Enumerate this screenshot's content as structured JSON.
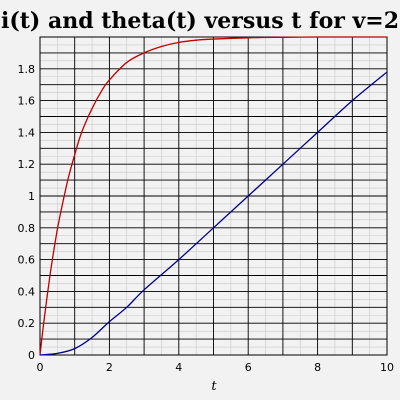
{
  "chart_data": {
    "type": "line",
    "title": "i(t) and theta(t) versus t for v=2",
    "xlabel": "t",
    "ylabel": "",
    "xlim": [
      0,
      10
    ],
    "ylim": [
      0,
      2.0
    ],
    "xticks": [
      0,
      2,
      4,
      6,
      8,
      10
    ],
    "yticks": [
      0,
      0.2,
      0.4,
      0.6,
      0.8,
      1,
      1.2,
      1.4,
      1.6,
      1.8
    ],
    "grid": true,
    "series": [
      {
        "color": "#c00000",
        "x": [
          0,
          0.1,
          0.2,
          0.3,
          0.4,
          0.5,
          0.6,
          0.8,
          1.0,
          1.2,
          1.5,
          1.8,
          2.0,
          2.5,
          3.0,
          3.5,
          4.0,
          4.5,
          5.0,
          6.0,
          7.0,
          8.0,
          9.0,
          10.0
        ],
        "y": [
          0,
          0.19,
          0.36,
          0.52,
          0.66,
          0.79,
          0.9,
          1.1,
          1.26,
          1.4,
          1.55,
          1.67,
          1.73,
          1.84,
          1.9,
          1.94,
          1.966,
          1.98,
          1.987,
          1.995,
          1.998,
          2.0,
          2.0,
          2.0
        ]
      },
      {
        "color": "#00008b",
        "x": [
          0,
          0.5,
          1.0,
          1.5,
          2.0,
          2.5,
          3.0,
          4.0,
          5.0,
          6.0,
          7.0,
          8.0,
          9.0,
          10.0
        ],
        "y": [
          0,
          0.01,
          0.04,
          0.11,
          0.21,
          0.3,
          0.41,
          0.6,
          0.8,
          1.0,
          1.2,
          1.4,
          1.6,
          1.78
        ]
      }
    ]
  }
}
